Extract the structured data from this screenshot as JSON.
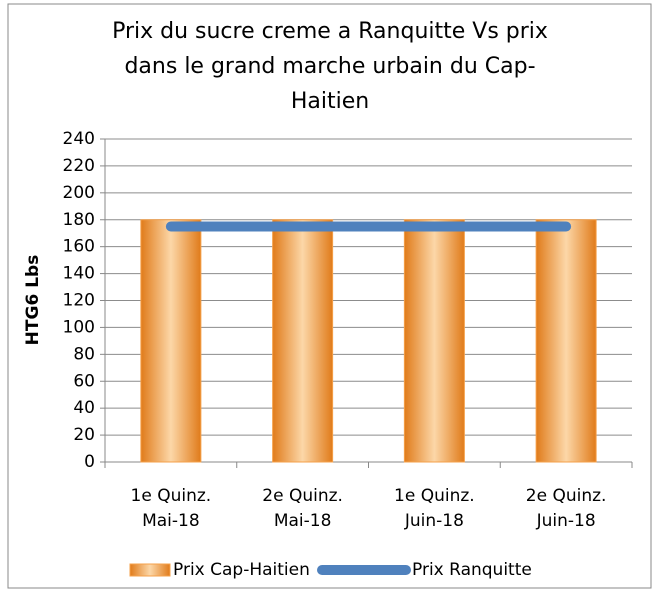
{
  "chart_data": {
    "type": "bar-line",
    "title": "Prix du sucre creme a Ranquitte Vs prix dans le grand marche urbain du Cap-Haitien",
    "y_label": "HTG6 Lbs",
    "categories": [
      "1e Quinz. Mai-18",
      "2e Quinz. Mai-18",
      "1e Quinz. Juin-18",
      "2e Quinz. Juin-18"
    ],
    "series": [
      {
        "name": "Prix Cap-Haitien",
        "type": "bar",
        "color": "#f5a04a",
        "values": [
          180,
          180,
          180,
          180
        ]
      },
      {
        "name": "Prix Ranquitte",
        "type": "line",
        "color": "#4f81bd",
        "values": [
          175,
          175,
          175,
          175
        ]
      }
    ],
    "ylim": [
      0,
      240
    ],
    "yticks": [
      0,
      20,
      40,
      60,
      80,
      100,
      120,
      140,
      160,
      180,
      200,
      220,
      240
    ],
    "grid": true,
    "legend": "bottom"
  }
}
